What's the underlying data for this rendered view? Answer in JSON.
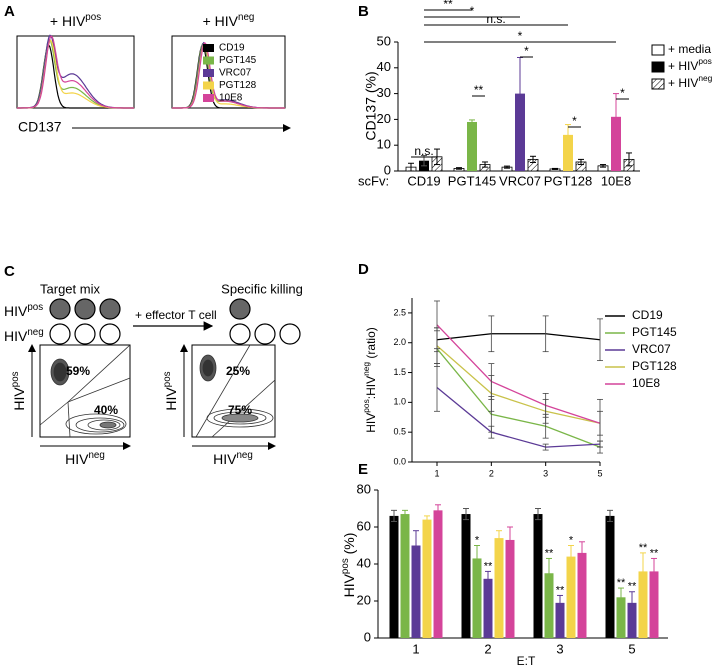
{
  "chart_data": [
    {
      "type": "histogram-overlay",
      "panel": "A",
      "titles": [
        [
          "+ HIV",
          "pos"
        ],
        [
          "+ HIV",
          "neg"
        ]
      ],
      "xlabel": "CD137",
      "series": [
        {
          "name": "CD19",
          "color": "#000000"
        },
        {
          "name": "PGT145",
          "color": "#7ab648"
        },
        {
          "name": "VRC07",
          "color": "#5b3a96"
        },
        {
          "name": "PGT128",
          "color": "#f3d44a"
        },
        {
          "name": "10E8",
          "color": "#d4449a"
        }
      ]
    },
    {
      "type": "grouped-bar",
      "panel": "B",
      "ylabel": "CD137 (%)",
      "xprefix": "scFv:",
      "categories": [
        "CD19",
        "PGT145",
        "VRC07",
        "PGT128",
        "10E8"
      ],
      "ylim": [
        0,
        50
      ],
      "yticks": [
        0,
        10,
        20,
        30,
        40,
        50
      ],
      "legend": "right",
      "series": [
        {
          "name": "+ media",
          "fill": "none",
          "values": [
            1.5,
            1,
            1.5,
            0.8,
            2
          ],
          "errors": [
            1.5,
            0.3,
            0.4,
            0.2,
            0.5
          ]
        },
        {
          "name": [
            "+ HIV",
            "pos"
          ],
          "color": "#000000",
          "colors": [
            "#000000",
            "#7ab648",
            "#5b3a96",
            "#f3d44a",
            "#d4449a"
          ],
          "values": [
            4,
            19,
            30,
            14,
            21
          ],
          "errors": [
            2,
            0.8,
            14,
            4,
            9
          ]
        },
        {
          "name": [
            "+ HIV",
            "neg"
          ],
          "fill": "hatch",
          "values": [
            5.5,
            2.5,
            4.5,
            3.5,
            4.5
          ],
          "errors": [
            3,
            1,
            1.2,
            1,
            2.5
          ]
        }
      ],
      "annotations": [
        "**",
        "*",
        "n.s.",
        "*",
        "n.s.",
        "**",
        "*",
        "*",
        "*"
      ]
    },
    {
      "type": "line-errorbar",
      "panel": "D",
      "ylabel": [
        "HIV",
        "pos",
        ":HIV",
        "neg",
        " (ratio)"
      ],
      "categories": [
        "1",
        "2",
        "3",
        "5"
      ],
      "ylim": [
        0,
        2.75
      ],
      "yticks": [
        {
          "value": 0,
          "label": "0.0"
        },
        0.5,
        {
          "value": 1,
          "label": "1.0"
        },
        1.5,
        {
          "value": 2,
          "label": "2.0"
        },
        2.5
      ],
      "series": [
        {
          "name": "CD19",
          "color": "#000000",
          "values": [
            2.05,
            2.15,
            2.15,
            2.05
          ],
          "errors": [
            0.2,
            0.3,
            0.3,
            0.35
          ]
        },
        {
          "name": "PGT145",
          "color": "#7ab648",
          "values": [
            1.9,
            0.8,
            0.6,
            0.25
          ],
          "errors": [
            0.3,
            0.3,
            0.2,
            0.1
          ]
        },
        {
          "name": "VRC07",
          "color": "#5b3a96",
          "values": [
            1.25,
            0.5,
            0.25,
            0.3
          ],
          "errors": [
            0.4,
            0.1,
            0.05,
            0.05
          ]
        },
        {
          "name": "PGT128",
          "color": "#c9c24a",
          "values": [
            1.95,
            1.15,
            0.85,
            0.65
          ],
          "errors": [
            0.3,
            0.3,
            0.2,
            0.2
          ]
        },
        {
          "name": "10E8",
          "color": "#d4449a",
          "values": [
            2.3,
            1.35,
            0.95,
            0.65
          ],
          "errors": [
            0.4,
            0.3,
            0.2,
            0.4
          ]
        }
      ]
    },
    {
      "type": "grouped-bar",
      "panel": "E",
      "ylabel": [
        "HIV",
        "pos",
        " (%)"
      ],
      "xlabel": "E:T",
      "categories": [
        "1",
        "2",
        "3",
        "5"
      ],
      "ylim": [
        0,
        80
      ],
      "yticks": [
        0,
        20,
        40,
        60,
        80
      ],
      "series": [
        {
          "name": "CD19",
          "color": "#000000",
          "values": [
            66,
            67,
            67,
            66
          ],
          "errors": [
            3,
            3,
            3,
            3
          ],
          "significance": [
            null,
            null,
            null,
            null
          ]
        },
        {
          "name": "PGT145",
          "color": "#7ab648",
          "values": [
            67,
            43,
            35,
            22
          ],
          "errors": [
            2,
            7,
            8,
            5
          ],
          "significance": [
            null,
            "*",
            "**",
            "**"
          ]
        },
        {
          "name": "VRC07",
          "color": "#5b3a96",
          "values": [
            50,
            32,
            19,
            19
          ],
          "errors": [
            8,
            4,
            4,
            6
          ],
          "significance": [
            null,
            "**",
            "**",
            "**"
          ]
        },
        {
          "name": "PGT128",
          "color": "#f3d44a",
          "values": [
            64,
            54,
            44,
            36
          ],
          "errors": [
            2,
            4,
            6,
            10
          ],
          "significance": [
            null,
            null,
            "*",
            "**"
          ]
        },
        {
          "name": "10E8",
          "color": "#d4449a",
          "values": [
            69,
            53,
            46,
            36
          ],
          "errors": [
            3,
            7,
            6,
            7
          ],
          "significance": [
            null,
            null,
            null,
            "**"
          ]
        }
      ]
    }
  ],
  "diagram": {
    "panel": "C",
    "target_mix": "Target mix",
    "specific_killing": "Specific killing",
    "row_labels": [
      [
        "HIV",
        "pos"
      ],
      [
        "HIV",
        "neg"
      ]
    ],
    "arrow_label": "+ effector T cell",
    "plots": [
      {
        "gates": [
          "59%",
          "40%"
        ],
        "ylabel": [
          "HIV",
          "pos"
        ],
        "xlabel": [
          "HIV",
          "neg"
        ]
      },
      {
        "gates": [
          "25%",
          "75%"
        ],
        "ylabel": [
          "HIV",
          "pos"
        ],
        "xlabel": [
          "HIV",
          "neg"
        ]
      }
    ]
  }
}
